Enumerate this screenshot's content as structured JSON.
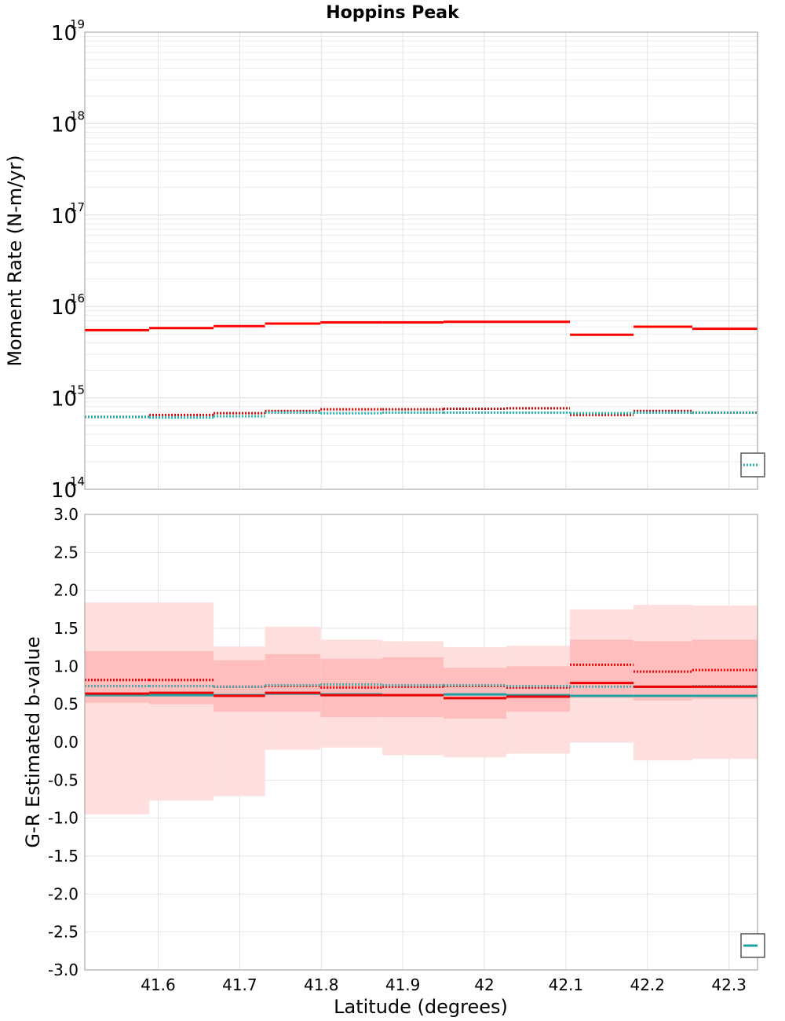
{
  "chart_data": {
    "title": "Hoppins Peak",
    "x_label": "Latitude (degrees)",
    "x_range": [
      41.51,
      42.335
    ],
    "x_ticks": [
      "41.6",
      "41.7",
      "41.8",
      "41.9",
      "42",
      "42.1",
      "42.2",
      "42.3"
    ],
    "x_tick_values": [
      41.6,
      41.7,
      41.8,
      41.9,
      42.0,
      42.1,
      42.2,
      42.3
    ],
    "bin_edges": [
      41.51,
      41.589,
      41.668,
      41.731,
      41.799,
      41.875,
      41.95,
      42.027,
      42.105,
      42.183,
      42.255,
      42.335
    ],
    "panels": [
      {
        "type": "line",
        "scale": "log",
        "y_label": "Moment Rate (N-m/yr)",
        "y_range": [
          100000000000000.0,
          1e+19
        ],
        "y_ticks": [
          {
            "base": "10",
            "exp": "14",
            "value": 100000000000000.0
          },
          {
            "base": "10",
            "exp": "15",
            "value": 1000000000000000.0
          },
          {
            "base": "10",
            "exp": "16",
            "value": 1e+16
          },
          {
            "base": "10",
            "exp": "17",
            "value": 1e+17
          },
          {
            "base": "10",
            "exp": "18",
            "value": 1e+18
          },
          {
            "base": "10",
            "exp": "19",
            "value": 1e+19
          }
        ],
        "grid": true,
        "legend": "bottom-right (clipped)",
        "series": [
          {
            "style": "solid",
            "color": "#ff0000",
            "values": [
              5500000000000000.0,
              5800000000000000.0,
              6100000000000000.0,
              6500000000000000.0,
              6700000000000000.0,
              6700000000000000.0,
              6800000000000000.0,
              6800000000000000.0,
              4900000000000000.0,
              6000000000000000.0,
              5700000000000000.0
            ]
          },
          {
            "style": "dotted",
            "color": "#cc0000",
            "values": [
              620000000000000.0,
              650000000000000.0,
              680000000000000.0,
              720000000000000.0,
              750000000000000.0,
              750000000000000.0,
              760000000000000.0,
              770000000000000.0,
              650000000000000.0,
              720000000000000.0,
              690000000000000.0
            ]
          },
          {
            "style": "dotted",
            "color": "#20b2aa",
            "values": [
              620000000000000.0,
              610000000000000.0,
              630000000000000.0,
              690000000000000.0,
              680000000000000.0,
              690000000000000.0,
              690000000000000.0,
              690000000000000.0,
              680000000000000.0,
              690000000000000.0,
              690000000000000.0
            ]
          }
        ]
      },
      {
        "type": "line",
        "scale": "linear",
        "y_label": "G-R Estimated b-value",
        "y_range": [
          -3.0,
          3.0
        ],
        "y_ticks": [
          "3.0",
          "2.5",
          "2.0",
          "1.5",
          "1.0",
          "0.5",
          "0.0",
          "-0.5",
          "-1.0",
          "-1.5",
          "-2.0",
          "-2.5",
          "-3.0"
        ],
        "y_tick_values": [
          3.0,
          2.5,
          2.0,
          1.5,
          1.0,
          0.5,
          0.0,
          -0.5,
          -1.0,
          -1.5,
          -2.0,
          -2.5,
          -3.0
        ],
        "grid": true,
        "legend": "bottom-right (clipped)",
        "bands": [
          {
            "name": "",
            "color": "#ffdede",
            "lower": [
              -0.95,
              -0.77,
              -0.71,
              -0.1,
              -0.07,
              -0.17,
              -0.2,
              -0.15,
              0.0,
              -0.24,
              -0.22
            ],
            "upper": [
              1.84,
              1.84,
              1.26,
              1.52,
              1.35,
              1.33,
              1.25,
              1.27,
              1.75,
              1.81,
              1.8
            ]
          },
          {
            "name": "",
            "color": "#ffbebe",
            "lower": [
              0.52,
              0.5,
              0.4,
              0.4,
              0.33,
              0.33,
              0.31,
              0.4,
              0.58,
              0.55,
              0.57
            ],
            "upper": [
              1.2,
              1.2,
              1.08,
              1.16,
              1.1,
              1.12,
              0.98,
              1.0,
              1.35,
              1.33,
              1.35
            ]
          }
        ],
        "series": [
          {
            "style": "dotted",
            "color": "#ee0000",
            "values": [
              0.82,
              0.82,
              0.73,
              0.74,
              0.72,
              0.73,
              0.74,
              0.72,
              1.02,
              0.93,
              0.95
            ]
          },
          {
            "style": "dotted",
            "color": "#4aa8a8",
            "values": [
              0.74,
              0.74,
              0.73,
              0.75,
              0.76,
              0.75,
              0.75,
              0.74,
              0.73,
              0.73,
              0.74
            ]
          },
          {
            "style": "solid",
            "color": "#20a0a0",
            "values": [
              0.62,
              0.62,
              0.62,
              0.64,
              0.63,
              0.62,
              0.63,
              0.62,
              0.61,
              0.61,
              0.61
            ]
          },
          {
            "style": "solid",
            "color": "#ee0000",
            "values": [
              0.64,
              0.65,
              0.61,
              0.65,
              0.62,
              0.62,
              0.58,
              0.6,
              0.78,
              0.73,
              0.73
            ]
          }
        ]
      }
    ]
  }
}
